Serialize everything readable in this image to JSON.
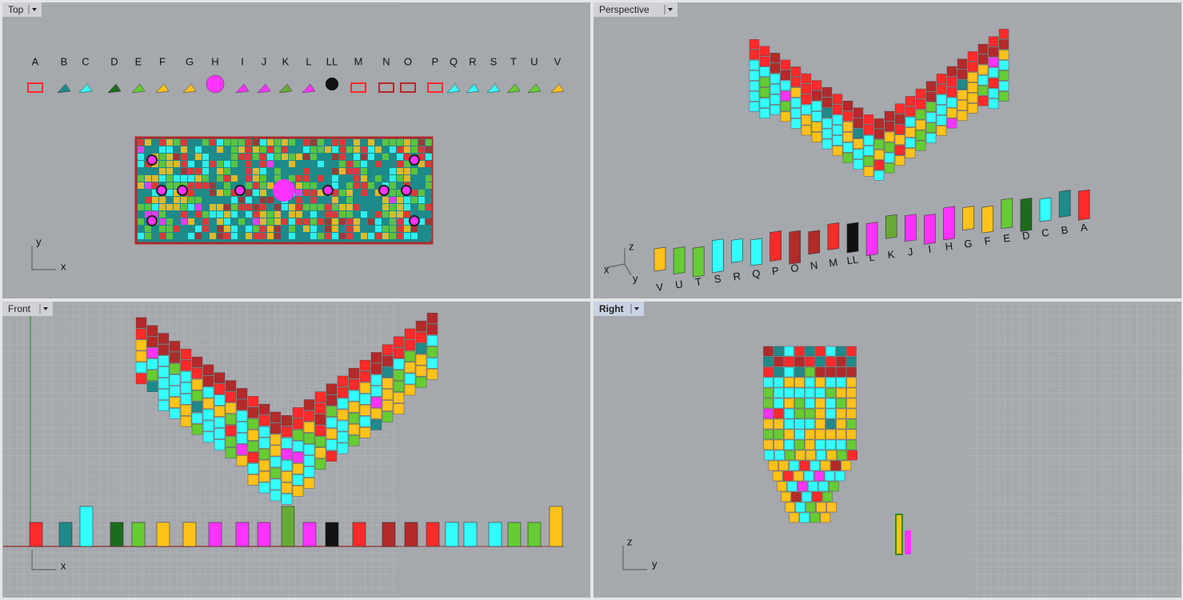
{
  "viewports": [
    {
      "title": "Top",
      "axis_labels": [
        "y",
        "x"
      ]
    },
    {
      "title": "Perspective",
      "axis_labels": [
        "z",
        "x",
        "y"
      ]
    },
    {
      "title": "Front",
      "axis_labels": [
        "x"
      ]
    },
    {
      "title": "Right",
      "axis_labels": [
        "z",
        "y"
      ]
    }
  ],
  "top_labels": [
    "A",
    "B",
    "C",
    "D",
    "E",
    "F",
    "G",
    "H",
    "I",
    "J",
    "K",
    "L",
    "LL",
    "M",
    "N",
    "O",
    "P",
    "Q",
    "R",
    "S",
    "T",
    "U",
    "V"
  ],
  "perspective_labels": [
    "V",
    "U",
    "T",
    "S",
    "R",
    "Q",
    "P",
    "O",
    "N",
    "M",
    "LL",
    "L",
    "K",
    "J",
    "I",
    "H",
    "G",
    "F",
    "E",
    "D",
    "C",
    "B",
    "A"
  ]
}
